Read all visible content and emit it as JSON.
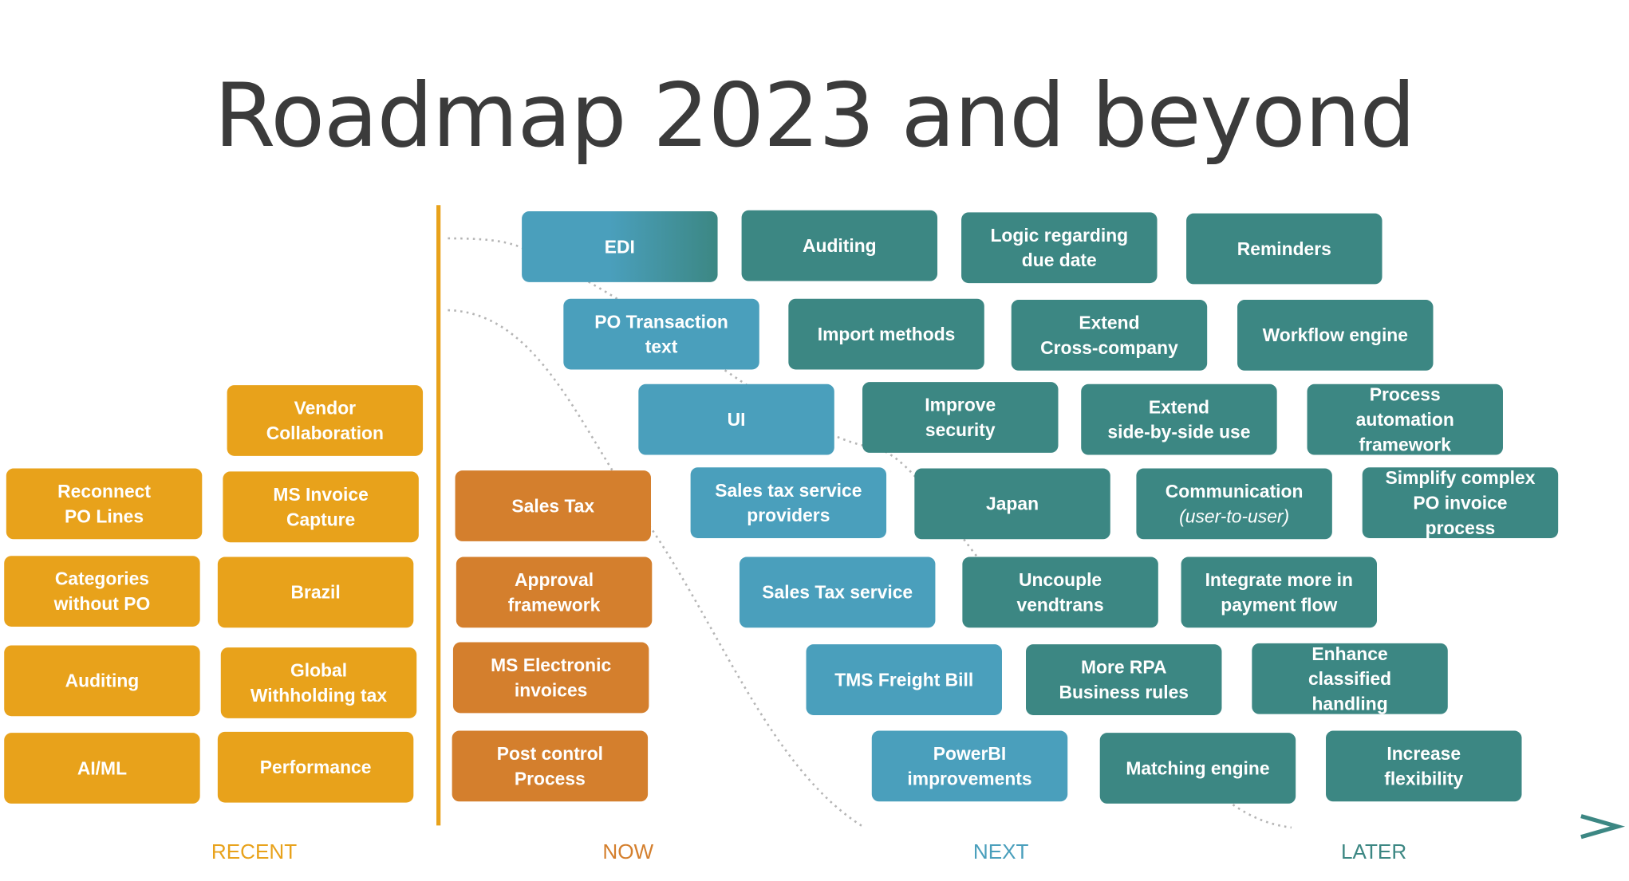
{
  "title": "Roadmap 2023 and beyond",
  "colors": {
    "recent": "#e8a21b",
    "now": "#d47f2d",
    "next": "#4a9fbc",
    "later": "#3c8783",
    "title_text": "#3b3b3b",
    "dotted_curve": "#b5b5b5"
  },
  "phases": [
    {
      "label": "RECENT",
      "color": "#e8a21b"
    },
    {
      "label": "NOW",
      "color": "#d47f2d"
    },
    {
      "label": "NEXT",
      "color": "#4a9fbc"
    },
    {
      "label": "LATER",
      "color": "#3c8783"
    }
  ],
  "recent": [
    "Vendor\nCollaboration",
    "Reconnect\nPO Lines",
    "MS Invoice\nCapture",
    "Categories\nwithout PO",
    "Brazil",
    "Auditing",
    "Global\nWithholding tax",
    "AI/ML",
    "Performance"
  ],
  "now": [
    "Sales Tax",
    "Approval\nframework",
    "MS Electronic\ninvoices",
    "Post control\nProcess"
  ],
  "next": [
    "EDI",
    "PO Transaction\ntext",
    "UI",
    "Sales tax service\nproviders",
    "Sales Tax service",
    "TMS Freight Bill",
    "PowerBI\nimprovements"
  ],
  "later": [
    "Auditing",
    "Logic regarding\ndue date",
    "Reminders",
    "Import methods",
    "Extend\nCross-company",
    "Workflow engine",
    "Improve\nsecurity",
    "Extend\nside-by-side use",
    "Process\nautomation\nframework",
    "Japan",
    "Communication",
    "Simplify complex\nPO invoice\nprocess",
    "Uncouple\nvendtrans",
    "Integrate more in\npayment flow",
    "More RPA\nBusiness rules",
    "Enhance\nclassified\nhandling",
    "Matching engine",
    "Increase\nflexibility"
  ],
  "communication_subtitle": "(user-to-user)"
}
